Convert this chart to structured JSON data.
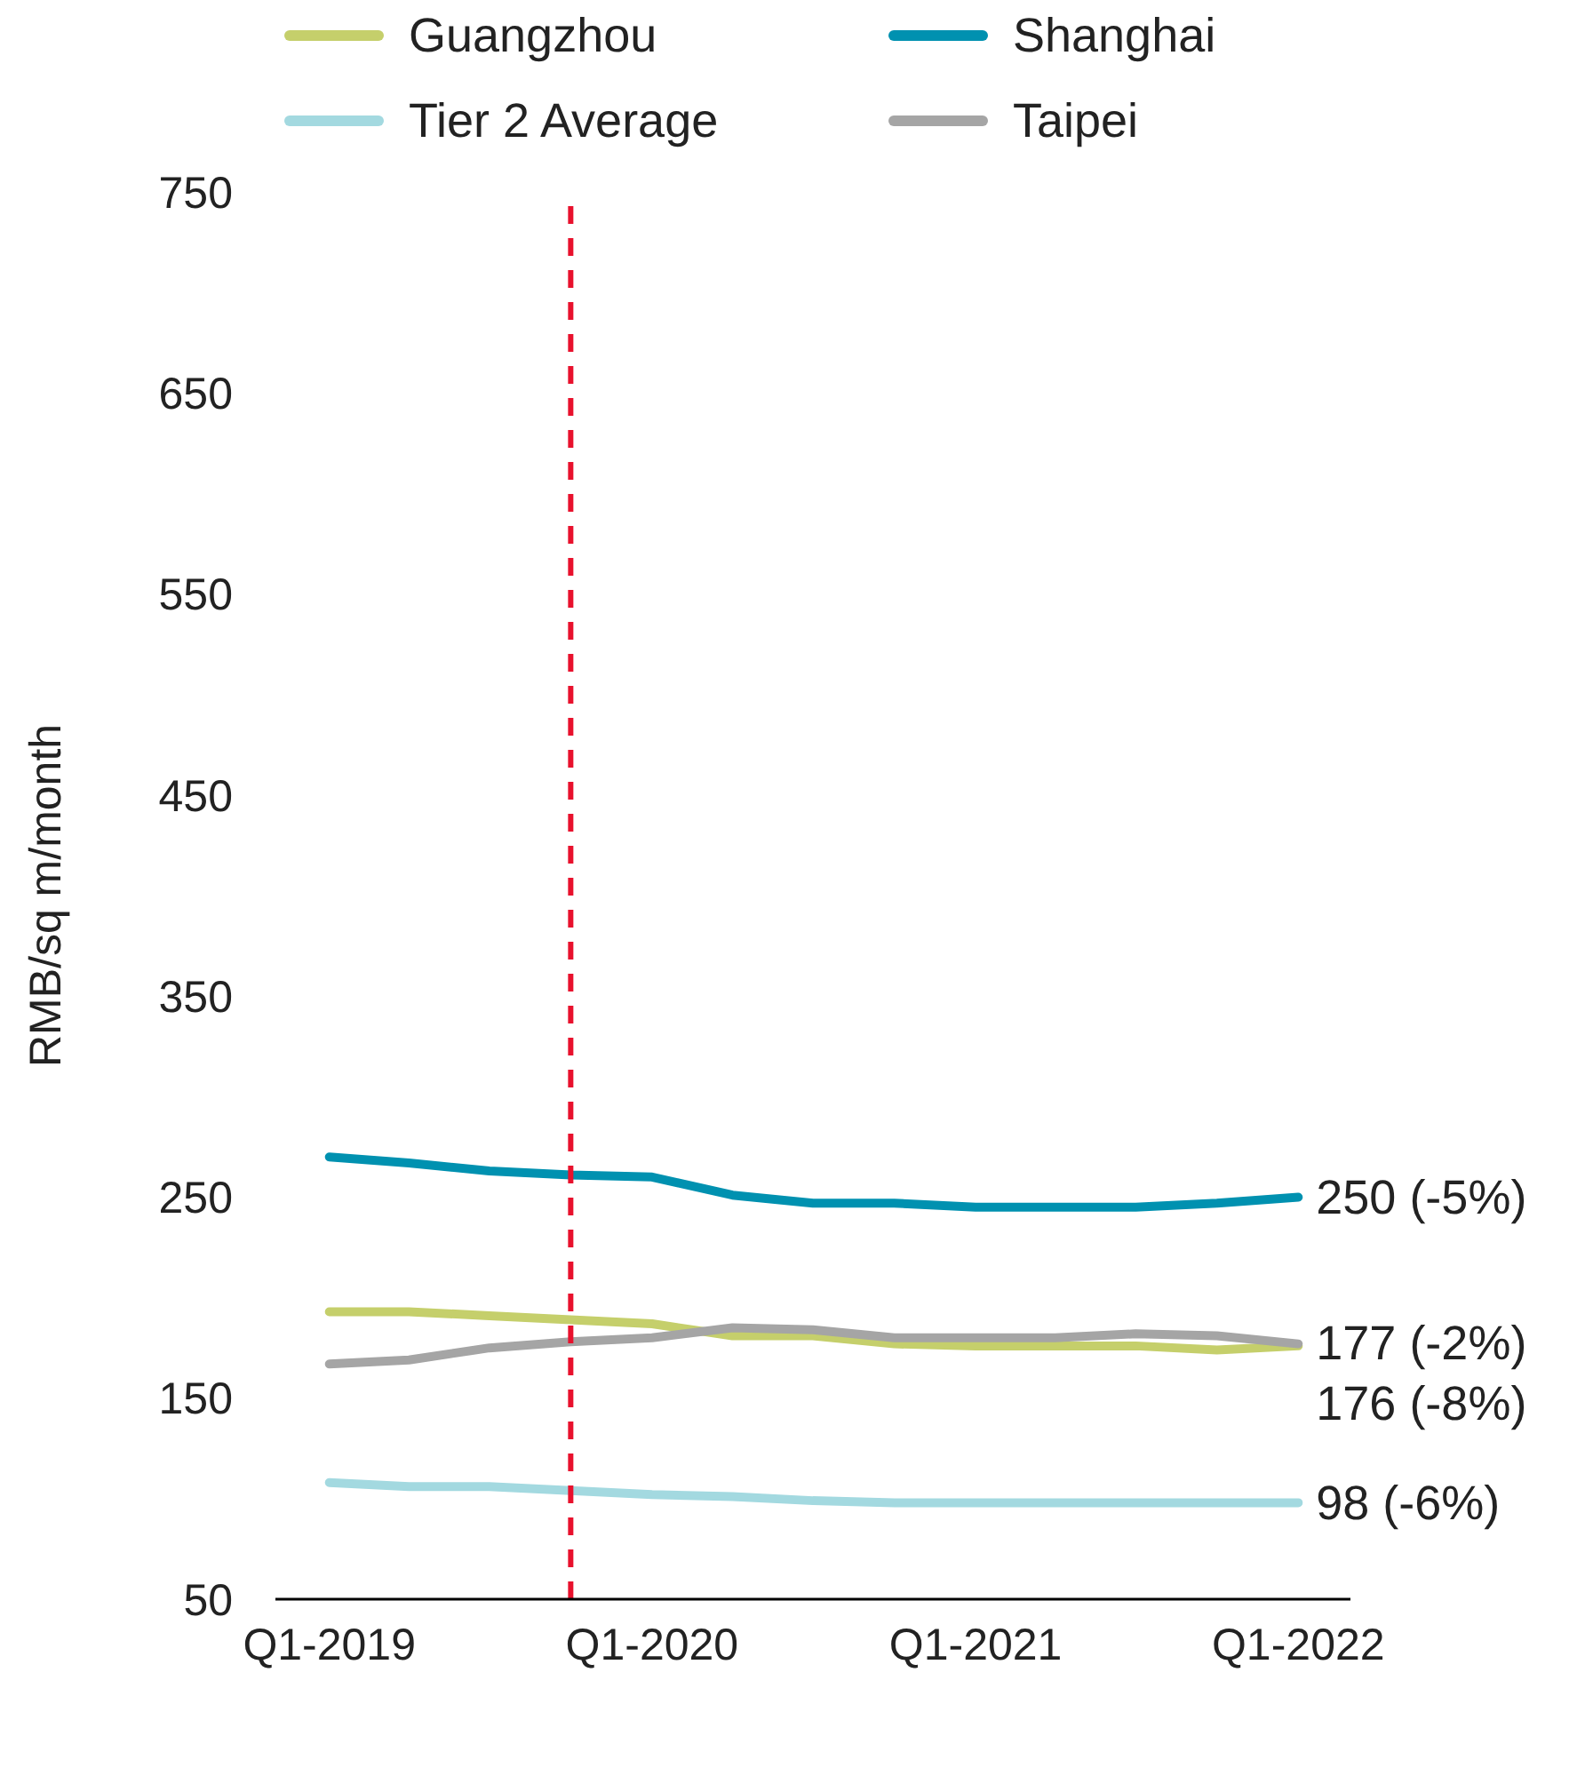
{
  "chart_data": {
    "type": "line",
    "ylabel": "RMB/sq m/month",
    "x": [
      "2019-01",
      "2019-04",
      "2019-07",
      "2019-10",
      "2020-01",
      "2020-04",
      "2020-07",
      "2020-10",
      "2021-01",
      "2021-04",
      "2021-07",
      "2021-10",
      "2022-01"
    ],
    "series": [
      {
        "name": "Guangzhou",
        "color": "#c5cf6b",
        "values": [
          193,
          193,
          191,
          189,
          187,
          181,
          181,
          177,
          176,
          176,
          176,
          174,
          176
        ]
      },
      {
        "name": "Shanghai",
        "color": "#0091b0",
        "values": [
          270,
          267,
          263,
          261,
          260,
          251,
          247,
          247,
          245,
          245,
          245,
          247,
          250
        ]
      },
      {
        "name": "Tier 2 Average",
        "color": "#a3d9e0",
        "values": [
          108,
          106,
          106,
          104,
          102,
          101,
          99,
          98,
          98,
          98,
          98,
          98,
          98
        ]
      },
      {
        "name": "Taipei",
        "color": "#a5a5a5",
        "values": [
          167,
          169,
          175,
          178,
          180,
          185,
          184,
          180,
          180,
          180,
          182,
          181,
          177
        ]
      }
    ],
    "xlim": [
      "2018-11",
      "2022-03"
    ],
    "xticks": [
      {
        "value": "2019-01",
        "label": "Q1-2019"
      },
      {
        "value": "2020-01",
        "label": "Q1-2020"
      },
      {
        "value": "2021-01",
        "label": "Q1-2021"
      },
      {
        "value": "2022-01",
        "label": "Q1-2022"
      }
    ],
    "ylim": [
      50,
      750
    ],
    "yticks": [
      50,
      150,
      250,
      350,
      450,
      550,
      650,
      750
    ],
    "ref_lines": [
      {
        "axis": "x",
        "value": "2019-10",
        "color": "#e8112d",
        "line_style": "dashed"
      }
    ],
    "annotations": [
      {
        "text": "250 (-5%)",
        "x": "2022-01",
        "y": 250
      },
      {
        "text": "177 (-2%)",
        "x": "2022-01",
        "y": 177
      },
      {
        "text": "176 (-8%)",
        "x": "2022-01",
        "y": 176
      },
      {
        "text": "98 (-6%)",
        "x": "2022-01",
        "y": 98
      }
    ],
    "grid": false,
    "legend": "top",
    "marker": "none",
    "line_style": "solid"
  }
}
